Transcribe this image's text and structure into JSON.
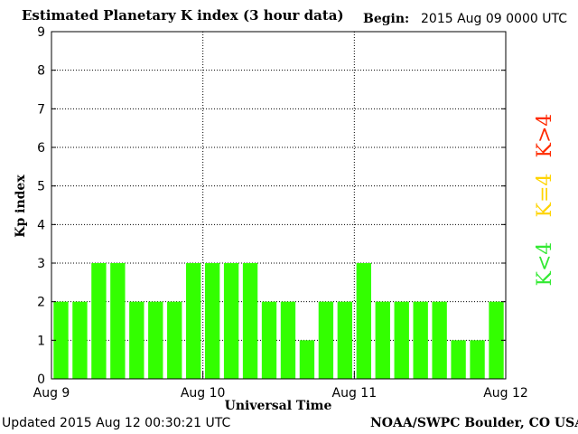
{
  "header": {
    "title": "Estimated Planetary K index (3 hour data)",
    "begin_label": "Begin:",
    "begin_value": "2015 Aug 09 0000 UTC"
  },
  "footer": {
    "updated": "Updated 2015 Aug 12 00:30:21 UTC",
    "credit": "NOAA/SWPC Boulder, CO USA"
  },
  "legend": {
    "items": [
      {
        "label": "K>4",
        "color": "#ff2a00"
      },
      {
        "label": "K=4",
        "color": "#ffd400"
      },
      {
        "label": "K<4",
        "color": "#33e933"
      }
    ]
  },
  "chart_data": {
    "type": "bar",
    "title": "Estimated Planetary K index (3 hour data)",
    "xlabel": "Universal Time",
    "ylabel": "Kp index",
    "ylim": [
      0,
      9
    ],
    "yticks": [
      0,
      1,
      2,
      3,
      4,
      5,
      6,
      7,
      8,
      9
    ],
    "xtick_labels": [
      "Aug 9",
      "Aug 10",
      "Aug 11",
      "Aug 12"
    ],
    "grid": true,
    "bar_color": "#33ff00",
    "series": [
      {
        "values": [
          2,
          2,
          3,
          3,
          2,
          2,
          2,
          3,
          3,
          3,
          3,
          2,
          2,
          1,
          2,
          2,
          3,
          2,
          2,
          2,
          2,
          1,
          1,
          2
        ]
      }
    ]
  }
}
